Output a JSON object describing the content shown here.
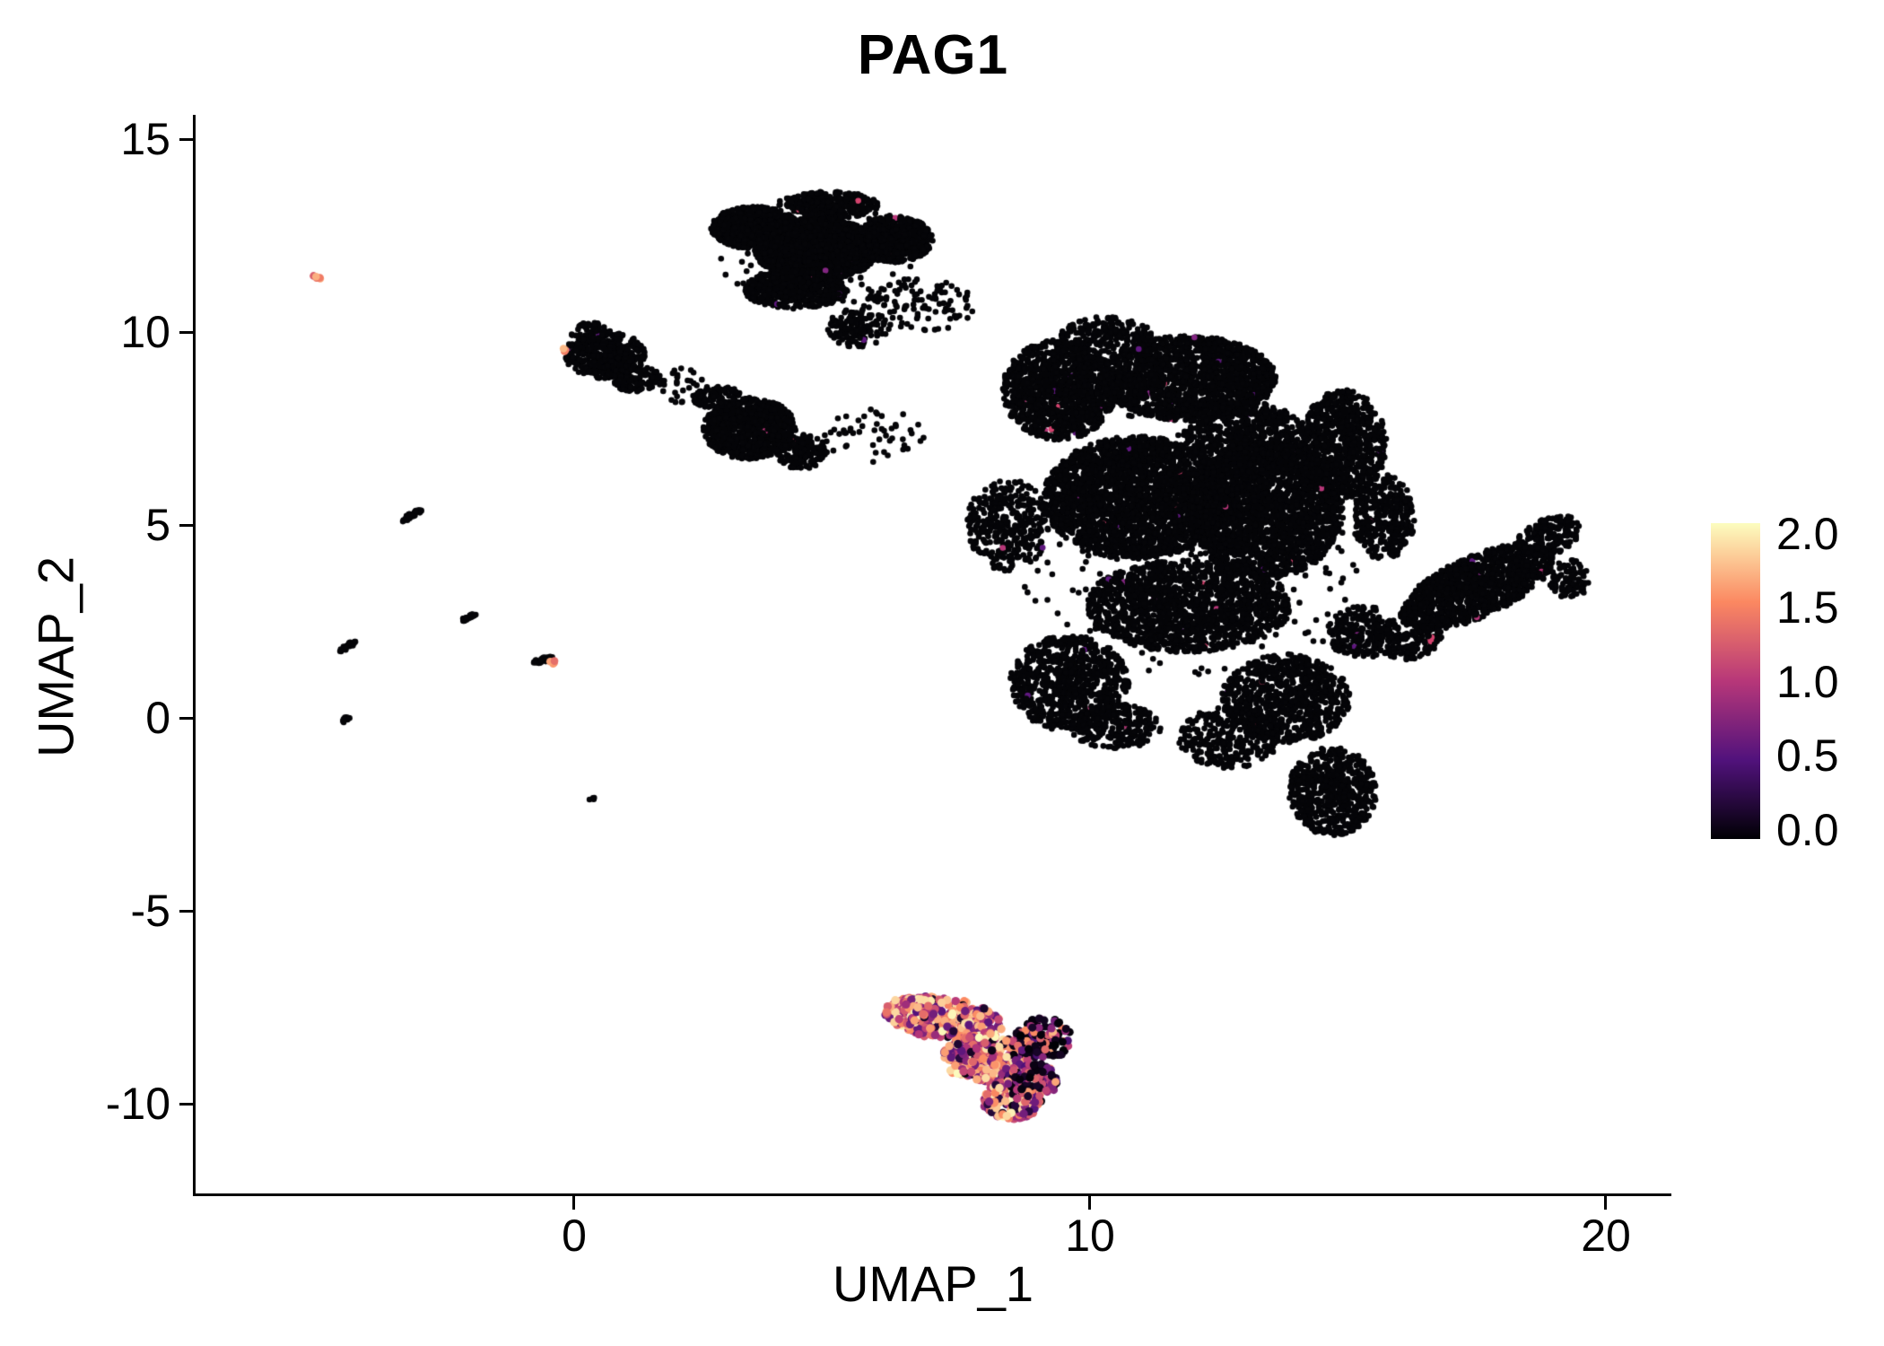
{
  "chart_data": {
    "type": "scatter",
    "title": "PAG1",
    "xlabel": "UMAP_1",
    "ylabel": "UMAP_2",
    "xlim": [
      -7.3,
      21.2
    ],
    "ylim": [
      -12.3,
      15.6
    ],
    "grid": false,
    "legend_position": "right",
    "x_ticks": {
      "values": [
        0,
        10,
        20
      ],
      "labels": [
        "0",
        "10",
        "20"
      ]
    },
    "y_ticks": {
      "values": [
        15,
        10,
        5,
        0,
        -5,
        -10
      ],
      "labels": [
        "15",
        "10",
        "5",
        "0",
        "-5",
        "-10"
      ]
    },
    "colorbar": {
      "min": 0.0,
      "max": 2.0,
      "tick_values": [
        2.0,
        1.5,
        1.0,
        0.5,
        0.0
      ],
      "tick_labels": [
        "2.0",
        "1.5",
        "1.0",
        "0.5",
        "0.0"
      ],
      "colormap_stops": [
        {
          "t": 0.0,
          "color": "#000004"
        },
        {
          "t": 0.25,
          "color": "#51127c"
        },
        {
          "t": 0.5,
          "color": "#b73779"
        },
        {
          "t": 0.75,
          "color": "#fb8861"
        },
        {
          "t": 1.0,
          "color": "#fcfdbf"
        }
      ]
    },
    "point_color": "#050508",
    "sprinkle": {
      "fraction": 0.0045,
      "palette": [
        "#822681",
        "#b73779",
        "#d3436e",
        "#5f187f"
      ]
    },
    "clusters": [
      {
        "cx": 4.7,
        "cy": 12.15,
        "rx": 1.2,
        "ry": 0.8,
        "n": 2400,
        "kind": "bg"
      },
      {
        "cx": 3.5,
        "cy": 12.7,
        "rx": 0.85,
        "ry": 0.55,
        "n": 800,
        "kind": "bg"
      },
      {
        "cx": 6.2,
        "cy": 12.4,
        "rx": 0.75,
        "ry": 0.6,
        "n": 700,
        "kind": "bg"
      },
      {
        "cx": 4.3,
        "cy": 11.1,
        "rx": 1.0,
        "ry": 0.5,
        "n": 600,
        "kind": "bg"
      },
      {
        "cx": 5.0,
        "cy": 13.3,
        "rx": 0.9,
        "ry": 0.35,
        "n": 300,
        "kind": "bg"
      },
      {
        "cx": 5.5,
        "cy": 10.1,
        "rx": 0.6,
        "ry": 0.5,
        "n": 130,
        "kind": "bg"
      },
      {
        "cx": 6.7,
        "cy": 10.7,
        "rx": 1.1,
        "ry": 0.7,
        "n": 110,
        "kind": "bg"
      },
      {
        "cx": 4.8,
        "cy": 12.1,
        "rx": 2.1,
        "ry": 1.5,
        "n": 160,
        "kind": "bg"
      },
      {
        "cx": 0.6,
        "cy": 9.4,
        "rx": 0.8,
        "ry": 0.6,
        "n": 420,
        "kind": "bg"
      },
      {
        "cx": 1.2,
        "cy": 8.8,
        "rx": 0.5,
        "ry": 0.35,
        "n": 100,
        "kind": "bg"
      },
      {
        "cx": 0.3,
        "cy": 10.0,
        "rx": 0.4,
        "ry": 0.25,
        "n": 60,
        "kind": "bg"
      },
      {
        "cx": 2.0,
        "cy": 8.6,
        "rx": 0.6,
        "ry": 0.5,
        "n": 35,
        "kind": "bg"
      },
      {
        "cx": 3.4,
        "cy": 7.5,
        "rx": 0.9,
        "ry": 0.8,
        "n": 850,
        "kind": "bg"
      },
      {
        "cx": 4.4,
        "cy": 6.9,
        "rx": 0.5,
        "ry": 0.45,
        "n": 160,
        "kind": "bg"
      },
      {
        "cx": 2.8,
        "cy": 8.3,
        "rx": 0.5,
        "ry": 0.3,
        "n": 90,
        "kind": "bg"
      },
      {
        "cx": 5.8,
        "cy": 7.3,
        "rx": 1.0,
        "ry": 0.7,
        "n": 50,
        "kind": "bg"
      },
      {
        "cx": 9.4,
        "cy": 8.5,
        "rx": 1.1,
        "ry": 1.3,
        "n": 1200,
        "kind": "bg"
      },
      {
        "cx": 11.9,
        "cy": 8.8,
        "rx": 1.7,
        "ry": 1.1,
        "n": 1700,
        "kind": "bg"
      },
      {
        "cx": 10.3,
        "cy": 9.9,
        "rx": 0.9,
        "ry": 0.5,
        "n": 200,
        "kind": "bg"
      },
      {
        "cx": 10.9,
        "cy": 5.7,
        "rx": 1.8,
        "ry": 1.6,
        "n": 2600,
        "kind": "bg"
      },
      {
        "cx": 8.4,
        "cy": 5.0,
        "rx": 0.8,
        "ry": 1.2,
        "n": 350,
        "kind": "bg"
      },
      {
        "cx": 13.4,
        "cy": 5.4,
        "rx": 1.5,
        "ry": 1.8,
        "n": 2300,
        "kind": "bg"
      },
      {
        "cx": 13.0,
        "cy": 7.2,
        "rx": 1.2,
        "ry": 1.0,
        "n": 700,
        "kind": "bg"
      },
      {
        "cx": 14.9,
        "cy": 7.1,
        "rx": 0.85,
        "ry": 1.4,
        "n": 750,
        "kind": "bg"
      },
      {
        "cx": 15.7,
        "cy": 5.2,
        "rx": 0.6,
        "ry": 1.1,
        "n": 350,
        "kind": "bg"
      },
      {
        "cx": 11.9,
        "cy": 2.9,
        "rx": 2.0,
        "ry": 1.2,
        "n": 1500,
        "kind": "bg"
      },
      {
        "cx": 9.6,
        "cy": 0.9,
        "rx": 1.15,
        "ry": 1.25,
        "n": 800,
        "kind": "bg"
      },
      {
        "cx": 10.5,
        "cy": -0.2,
        "rx": 0.9,
        "ry": 0.6,
        "n": 250,
        "kind": "bg"
      },
      {
        "cx": 13.8,
        "cy": 0.5,
        "rx": 1.25,
        "ry": 1.15,
        "n": 800,
        "kind": "bg"
      },
      {
        "cx": 14.7,
        "cy": -1.9,
        "rx": 0.85,
        "ry": 1.15,
        "n": 600,
        "kind": "bg"
      },
      {
        "cx": 12.7,
        "cy": -0.5,
        "rx": 1.0,
        "ry": 0.8,
        "n": 300,
        "kind": "bg"
      },
      {
        "cx": 12.0,
        "cy": 4.5,
        "rx": 3.6,
        "ry": 3.6,
        "n": 260,
        "kind": "bg"
      },
      {
        "cx": 15.3,
        "cy": 2.2,
        "rx": 0.7,
        "ry": 0.7,
        "n": 250,
        "kind": "bg"
      },
      {
        "cx": 17.5,
        "cy": 3.4,
        "rx": 1.7,
        "ry": 0.75,
        "n": 1200,
        "kind": "bg",
        "rot": 33
      },
      {
        "cx": 18.9,
        "cy": 4.7,
        "rx": 0.7,
        "ry": 0.45,
        "n": 200,
        "kind": "bg",
        "rot": 33
      },
      {
        "cx": 16.3,
        "cy": 1.9,
        "rx": 0.6,
        "ry": 0.35,
        "n": 130,
        "kind": "bg",
        "rot": 33
      },
      {
        "cx": 19.3,
        "cy": 3.6,
        "rx": 0.4,
        "ry": 0.5,
        "n": 90,
        "kind": "bg"
      },
      {
        "cx": -3.15,
        "cy": 5.25,
        "rx": 0.25,
        "ry": 0.06,
        "n": 40,
        "kind": "streak",
        "rot": 38
      },
      {
        "cx": -4.4,
        "cy": 1.85,
        "rx": 0.2,
        "ry": 0.06,
        "n": 30,
        "kind": "streak",
        "rot": 38
      },
      {
        "cx": -2.05,
        "cy": 2.6,
        "rx": 0.18,
        "ry": 0.06,
        "n": 26,
        "kind": "streak",
        "rot": 38
      },
      {
        "cx": -0.62,
        "cy": 1.5,
        "rx": 0.22,
        "ry": 0.07,
        "n": 32,
        "kind": "streak",
        "rot": 18
      },
      {
        "cx": -4.45,
        "cy": -0.05,
        "rx": 0.12,
        "ry": 0.05,
        "n": 12,
        "kind": "streak",
        "rot": 38
      },
      {
        "cx": 0.35,
        "cy": -2.1,
        "rx": 0.07,
        "ry": 0.05,
        "n": 5,
        "kind": "streak"
      },
      {
        "cx": -5.0,
        "cy": 11.4,
        "rx": 0.09,
        "ry": 0.07,
        "n": 6,
        "kind": "hot"
      },
      {
        "cx": -0.42,
        "cy": 1.44,
        "rx": 0.09,
        "ry": 0.05,
        "n": 5,
        "kind": "hot"
      },
      {
        "cx": -0.18,
        "cy": 9.55,
        "rx": 0.06,
        "ry": 0.05,
        "n": 3,
        "kind": "hot"
      },
      {
        "cx": 7.2,
        "cy": -7.8,
        "rx": 1.15,
        "ry": 0.55,
        "n": 330,
        "kind": "expr",
        "rot": -12
      },
      {
        "cx": 8.0,
        "cy": -8.8,
        "rx": 0.85,
        "ry": 0.65,
        "n": 300,
        "kind": "expr"
      },
      {
        "cx": 8.5,
        "cy": -9.9,
        "rx": 0.6,
        "ry": 0.5,
        "n": 180,
        "kind": "expr"
      },
      {
        "cx": 6.5,
        "cy": -7.6,
        "rx": 0.5,
        "ry": 0.35,
        "n": 110,
        "kind": "expr"
      },
      {
        "cx": 9.1,
        "cy": -8.3,
        "rx": 0.55,
        "ry": 0.55,
        "n": 130,
        "kind": "mixed"
      },
      {
        "cx": 8.9,
        "cy": -9.4,
        "rx": 0.5,
        "ry": 0.45,
        "n": 110,
        "kind": "mixed"
      }
    ]
  }
}
